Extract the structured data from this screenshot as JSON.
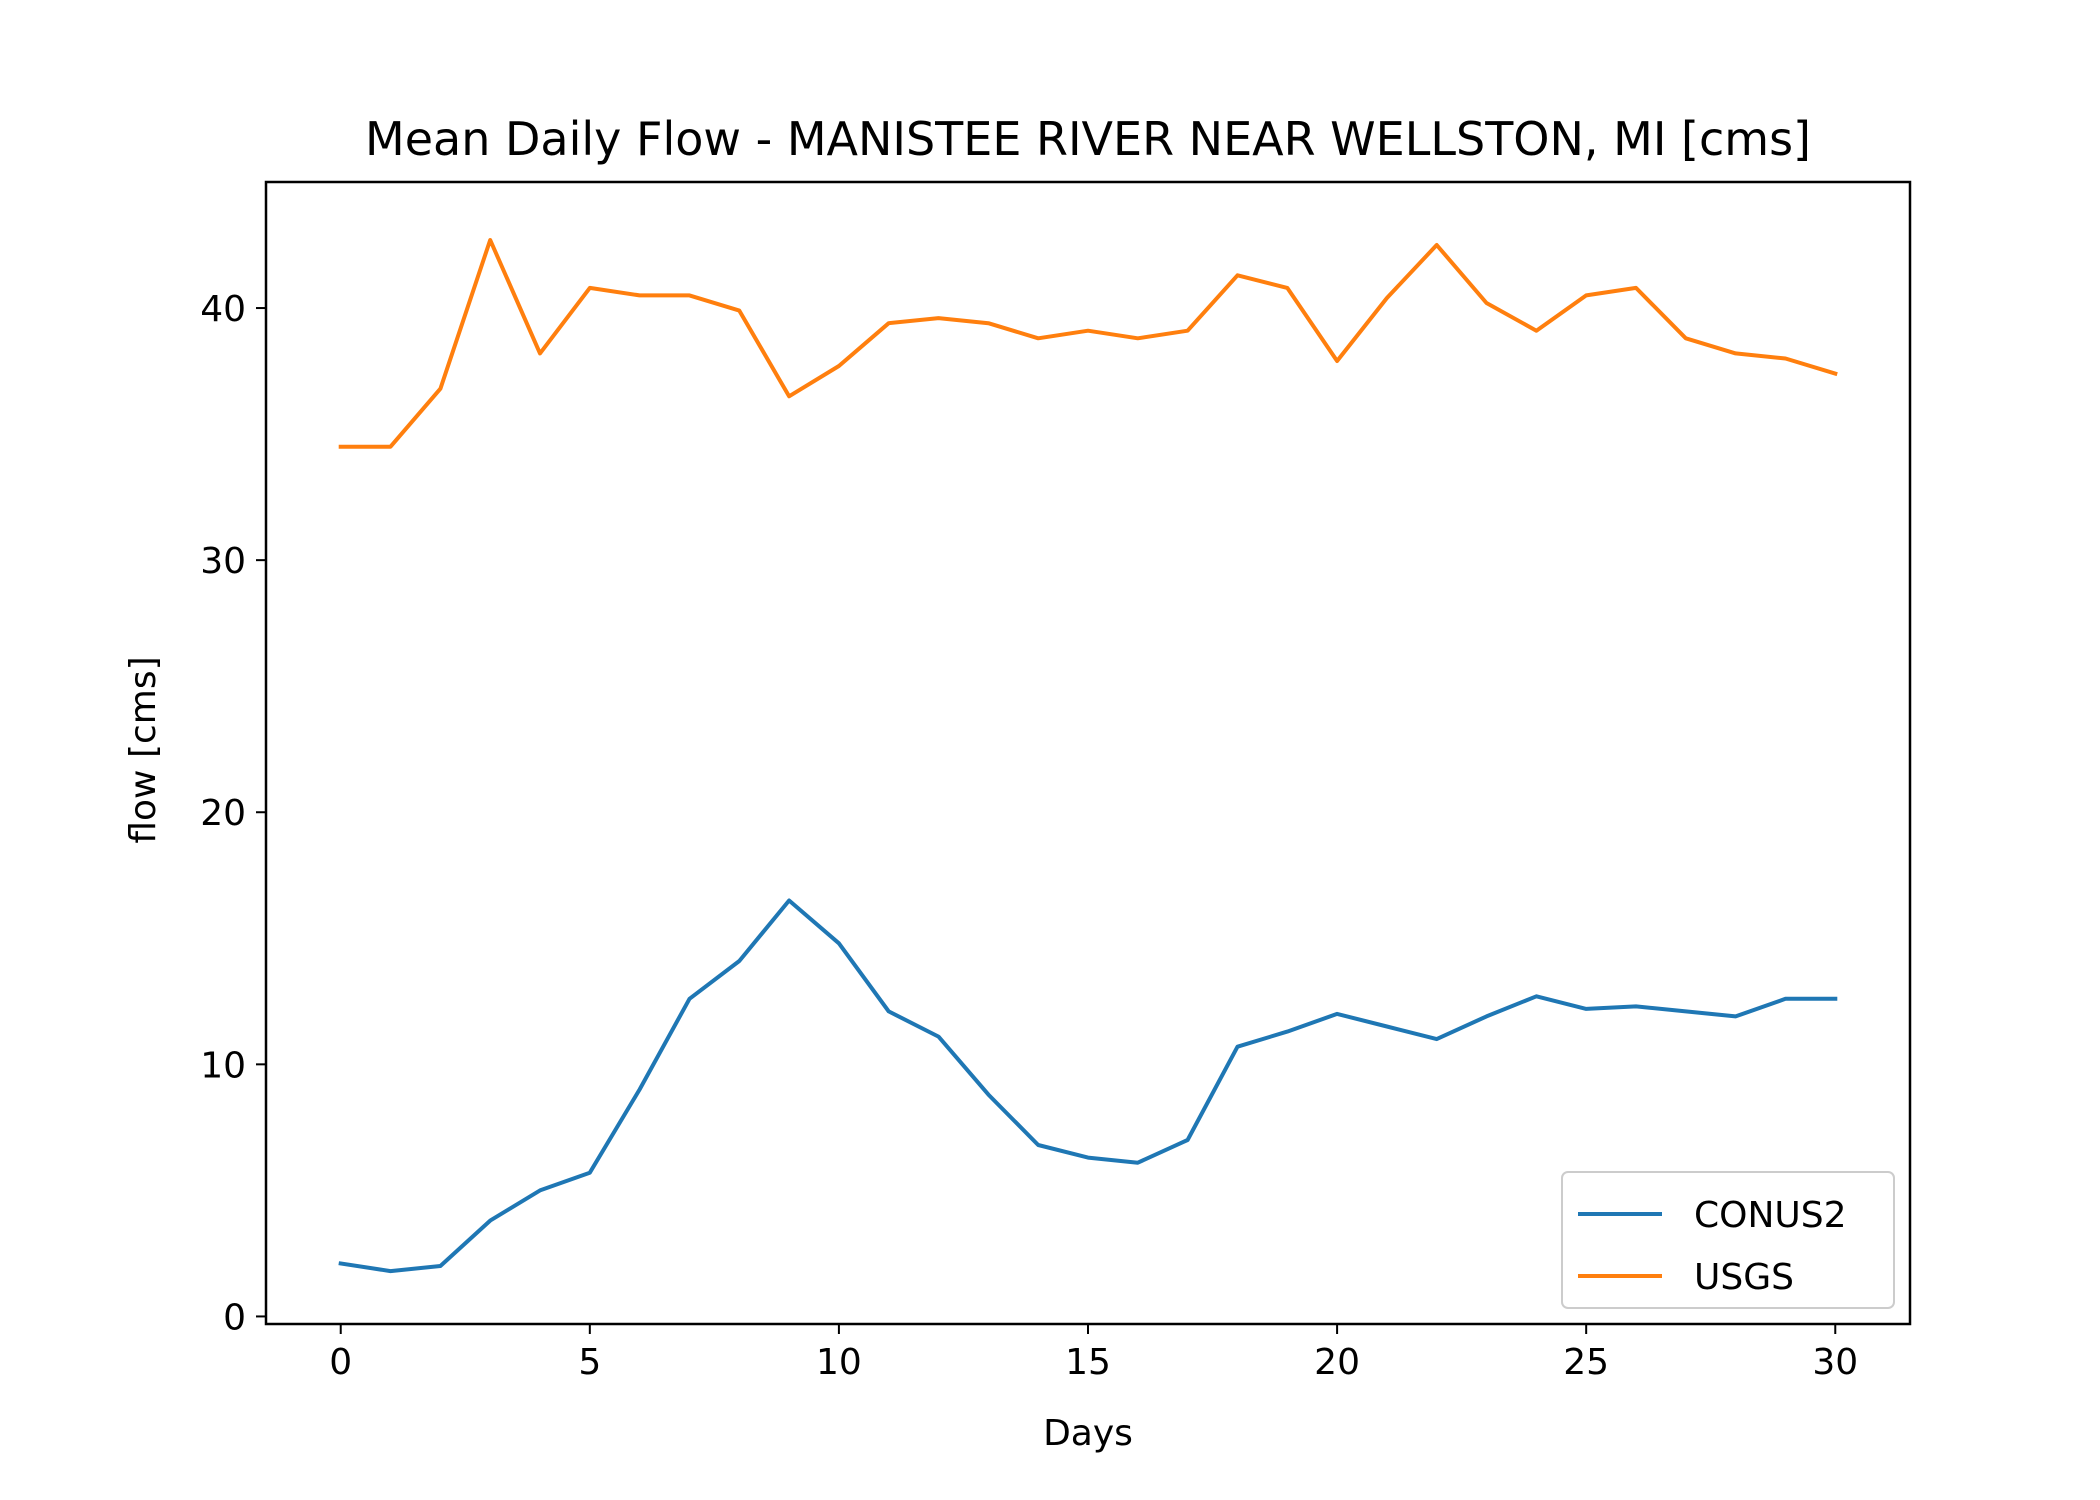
{
  "chart_data": {
    "type": "line",
    "title": "Mean Daily Flow - MANISTEE RIVER NEAR WELLSTON, MI [cms]",
    "xlabel": "Days",
    "ylabel": "flow [cms]",
    "xlim": [
      -1.5,
      31.5
    ],
    "ylim": [
      -0.3,
      45
    ],
    "xticks": [
      0,
      5,
      10,
      15,
      20,
      25,
      30
    ],
    "yticks": [
      0,
      10,
      20,
      30,
      40
    ],
    "x": [
      0,
      1,
      2,
      3,
      4,
      5,
      6,
      7,
      8,
      9,
      10,
      11,
      12,
      13,
      14,
      15,
      16,
      17,
      18,
      19,
      20,
      21,
      22,
      23,
      24,
      25,
      26,
      27,
      28,
      29,
      30
    ],
    "series": [
      {
        "name": "CONUS2",
        "color": "#1f77b4",
        "values": [
          2.1,
          1.8,
          2.0,
          3.8,
          5.0,
          5.7,
          9.0,
          12.6,
          14.1,
          16.5,
          14.8,
          12.1,
          11.1,
          8.8,
          6.8,
          6.3,
          6.1,
          7.0,
          10.7,
          11.3,
          12.0,
          11.5,
          11.0,
          11.9,
          12.7,
          12.2,
          12.3,
          12.1,
          11.9,
          12.6,
          12.6
        ]
      },
      {
        "name": "USGS",
        "color": "#ff7f0e",
        "values": [
          34.5,
          34.5,
          36.8,
          42.7,
          38.2,
          40.8,
          40.5,
          40.5,
          39.9,
          36.5,
          37.7,
          39.4,
          39.6,
          39.4,
          38.8,
          39.1,
          38.8,
          39.1,
          41.3,
          40.8,
          37.9,
          40.4,
          42.5,
          40.2,
          39.1,
          40.5,
          40.8,
          38.8,
          38.2,
          38.0,
          37.4
        ]
      }
    ],
    "legend": "lower-right",
    "grid": false
  }
}
